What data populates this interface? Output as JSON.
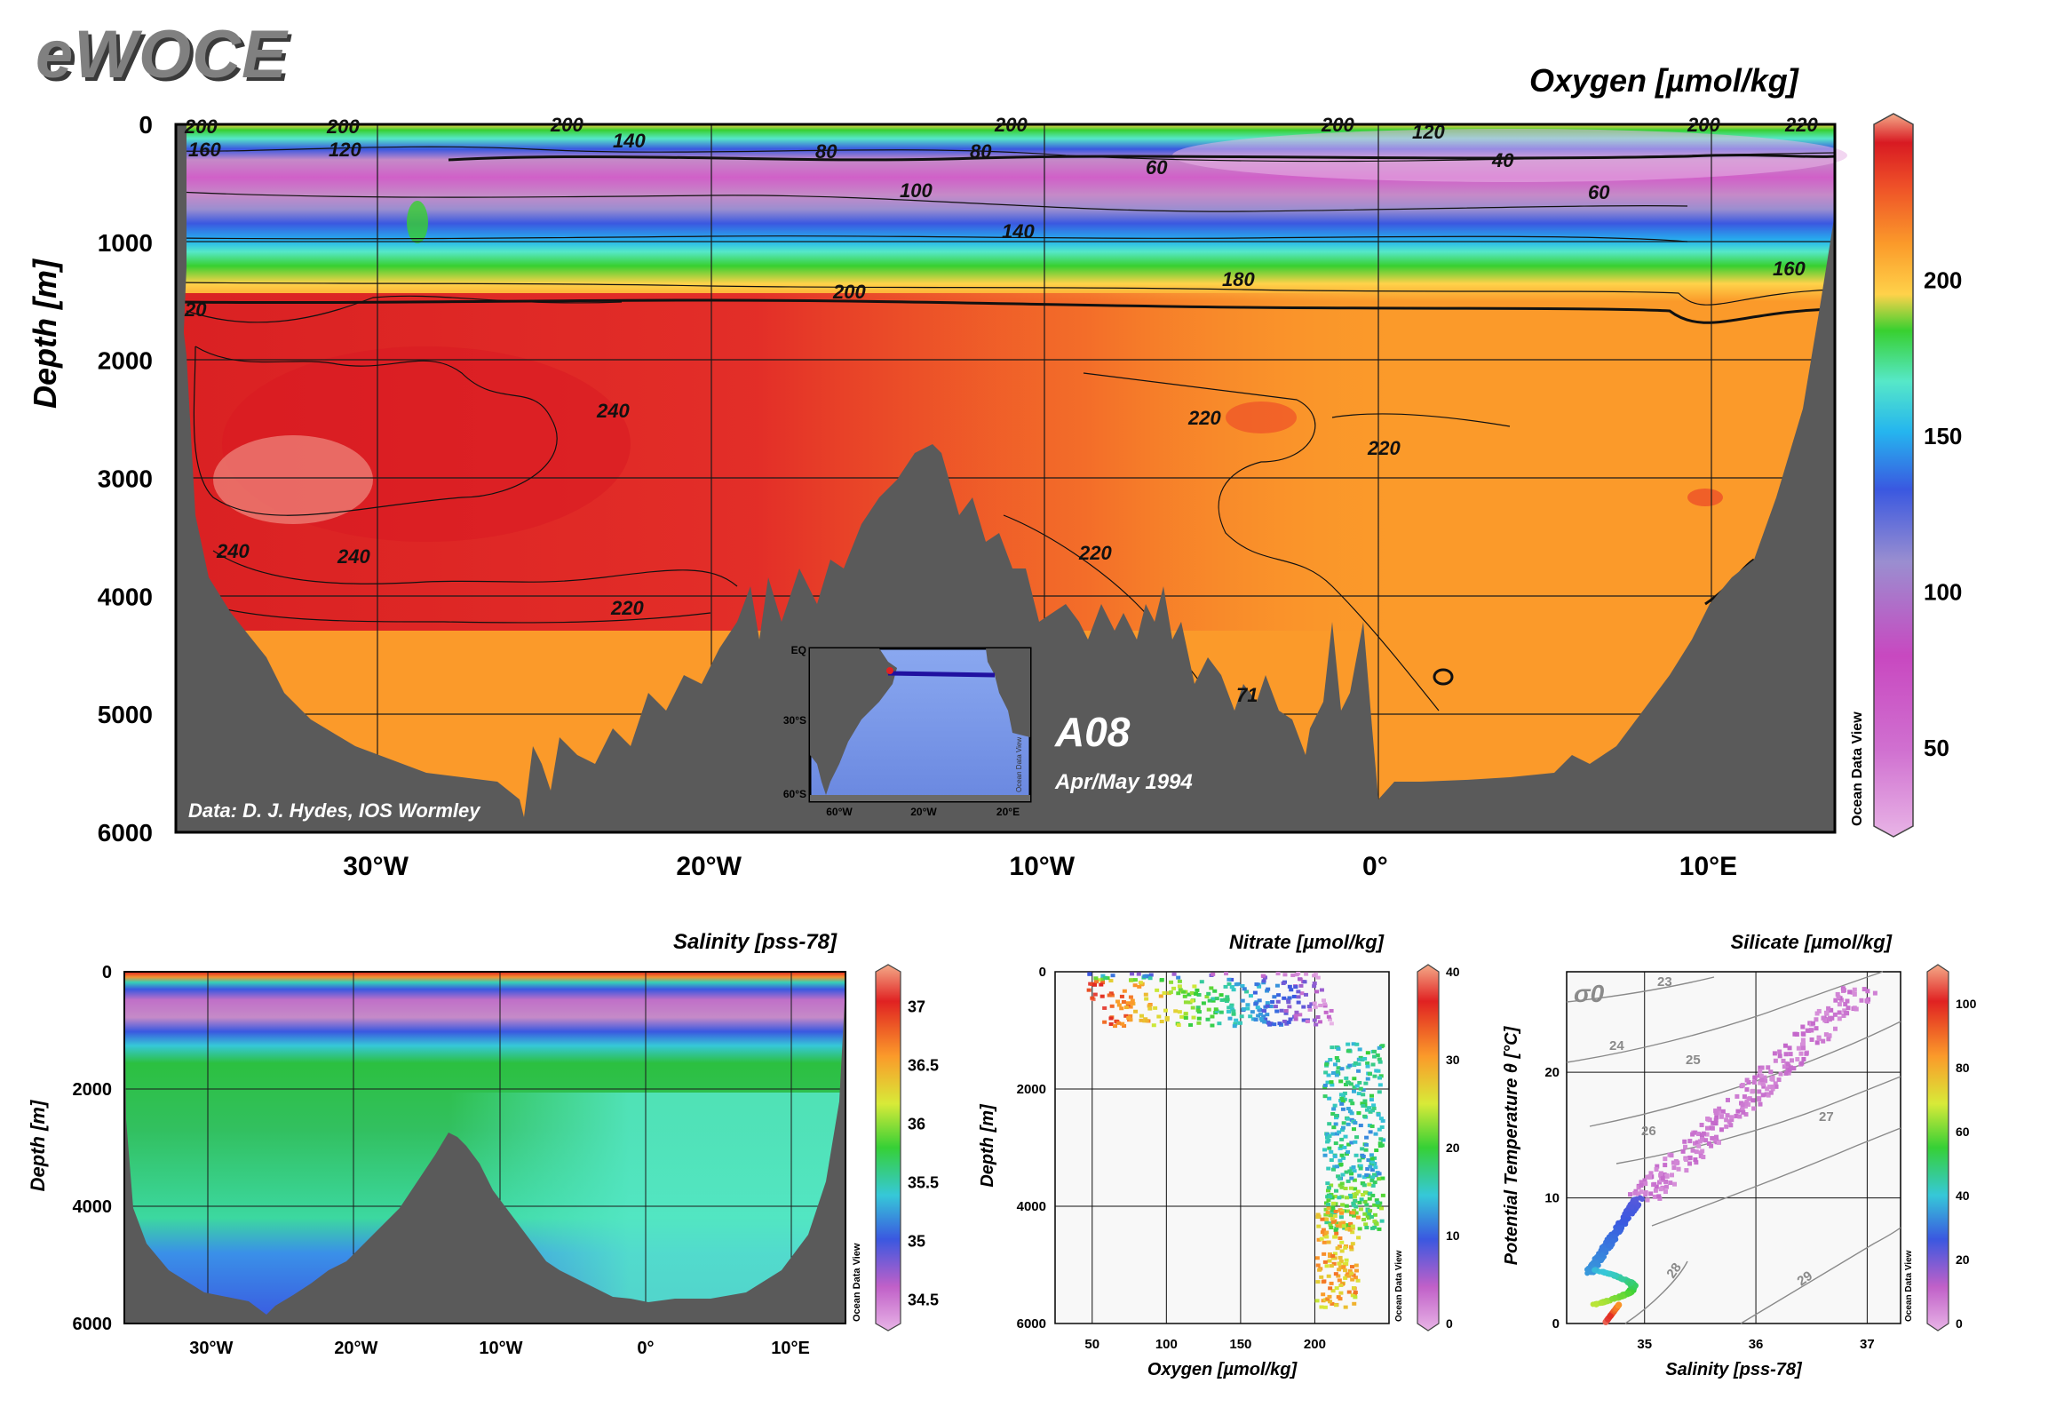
{
  "logo": "eWOCE",
  "colors": {
    "land": "#5a5a5a",
    "oxygen_scale": [
      "#e8b4e6",
      "#d060c8",
      "#c58ac8",
      "#9a8ed0",
      "#3a58e0",
      "#25b5ef",
      "#56e8c8",
      "#38d030",
      "#ffd24a",
      "#fb9a2a",
      "#ee5028",
      "#d81a22",
      "#f4aa88"
    ],
    "salinity_scale": [
      "#e8b4e6",
      "#c070c8",
      "#3a58e0",
      "#36d0b8",
      "#2cc040",
      "#ffd24a",
      "#f59030",
      "#e02222",
      "#f4aa88"
    ],
    "nitrate_scale": [
      "#e8b4e6",
      "#c060c8",
      "#3a58e0",
      "#36c8d8",
      "#36d036",
      "#d8ea38",
      "#fb9a2a",
      "#e02222",
      "#f4aa88"
    ],
    "silicate_scale": [
      "#e8b4e6",
      "#c060c8",
      "#3a58e0",
      "#36c8d8",
      "#36d036",
      "#d8ea38",
      "#fb9a2a",
      "#e02222",
      "#f4aa88"
    ]
  },
  "main": {
    "title": "Oxygen [µmol/kg]",
    "ylabel": "Depth [m]",
    "credit": "Data: D. J. Hydes, IOS Wormley",
    "section_name": "A08",
    "section_date": "Apr/May 1994",
    "odv": "Ocean Data View",
    "inset": {
      "lat_labels": [
        "EQ",
        "30°S",
        "60°S"
      ],
      "lon_labels": [
        "60°W",
        "20°W",
        "20°E"
      ],
      "odv": "Ocean Data View"
    }
  },
  "chart_data": [
    {
      "type": "heatmap",
      "title": "Oxygen [µmol/kg]",
      "ylabel": "Depth [m]",
      "xlabel": "",
      "xlim": [
        -36,
        13.8
      ],
      "ylim": [
        6000,
        0
      ],
      "x_tick_labels": [
        "30°W",
        "20°W",
        "10°W",
        "0°",
        "10°E"
      ],
      "x_ticks": [
        -30,
        -20,
        -10,
        0,
        10
      ],
      "y_ticks": [
        0,
        1000,
        2000,
        3000,
        4000,
        5000,
        6000
      ],
      "grid": true,
      "colorbar_ticks": [
        50,
        100,
        150,
        200
      ],
      "contour_labels": [
        "200",
        "200",
        "200",
        "200",
        "200",
        "200",
        "220",
        "120",
        "120",
        "140",
        "160",
        "80",
        "80",
        "60",
        "40",
        "60",
        "100",
        "140",
        "180",
        "200",
        "160",
        "20",
        "240",
        "240",
        "240",
        "220",
        "220",
        "220",
        "220",
        "71"
      ]
    },
    {
      "type": "heatmap",
      "title": "Salinity [pss-78]",
      "ylabel": "Depth [m]",
      "xlim": [
        -36,
        13.8
      ],
      "ylim": [
        6000,
        0
      ],
      "x_tick_labels": [
        "30°W",
        "20°W",
        "10°W",
        "0°",
        "10°E"
      ],
      "x_ticks": [
        -30,
        -20,
        -10,
        0,
        10
      ],
      "y_ticks": [
        0,
        2000,
        4000,
        6000
      ],
      "grid": true,
      "colorbar_ticks": [
        "37",
        "36.5",
        "36",
        "35.5",
        "35",
        "34.5"
      ],
      "odv": "Ocean Data View"
    },
    {
      "type": "scatter",
      "title": "Nitrate [µmol/kg]",
      "xlabel": "Oxygen [µmol/kg]",
      "ylabel": "Depth [m]",
      "xlim": [
        25,
        250
      ],
      "ylim": [
        6000,
        0
      ],
      "x_ticks": [
        50,
        100,
        150,
        200
      ],
      "y_ticks": [
        0,
        2000,
        4000,
        6000
      ],
      "grid": true,
      "colorbar_ticks": [
        0,
        10,
        20,
        30,
        40
      ],
      "odv": "Ocean Data View"
    },
    {
      "type": "scatter",
      "title": "Silicate [µmol/kg]",
      "xlabel": "Salinity [pss-78]",
      "ylabel": "Potential Temperature θ [°C]",
      "xlim": [
        34.3,
        37.3
      ],
      "ylim": [
        0,
        28
      ],
      "x_ticks": [
        35,
        36,
        37
      ],
      "y_ticks": [
        0,
        10,
        20
      ],
      "grid": true,
      "density_label": "σ0",
      "isopycnal_labels": [
        "23",
        "24",
        "25",
        "26",
        "27",
        "28",
        "29"
      ],
      "colorbar_ticks": [
        0,
        20,
        40,
        60,
        80,
        100
      ],
      "odv": "Ocean Data View"
    }
  ]
}
